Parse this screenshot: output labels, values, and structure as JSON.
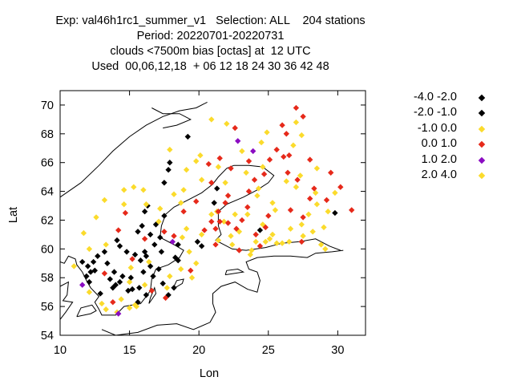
{
  "titles": [
    "Exp: val46h1rc1_summer_v1   Selection: ALL    204 stations",
    "Period: 20220701-20220731",
    "clouds <7500m bias [octas] at  12 UTC",
    "Used  00,06,12,18  + 06 12 18 24 30 36 42 48"
  ],
  "chart_data": {
    "type": "scatter",
    "title": "Exp: val46h1rc1_summer_v1   Selection: ALL    204 stations",
    "xlabel": "Lon",
    "ylabel": "Lat",
    "xlim": [
      10,
      32
    ],
    "ylim": [
      54,
      71
    ],
    "xticks": [
      "10",
      "15",
      "20",
      "25",
      "30"
    ],
    "yticks": [
      "54",
      "56",
      "58",
      "60",
      "62",
      "64",
      "66",
      "68",
      "70"
    ],
    "grid": false,
    "legend_position": "outside-right",
    "series": [
      {
        "name": "-4.0 -2.0",
        "color": "#000000",
        "points": [
          [
            19.2,
            67.8
          ],
          [
            17.9,
            66.0
          ],
          [
            17.8,
            65.5
          ],
          [
            16.3,
            63.0
          ],
          [
            17.5,
            62.3
          ],
          [
            16.1,
            62.6
          ],
          [
            15.9,
            61.6
          ],
          [
            15.6,
            61.2
          ],
          [
            16.5,
            61.0
          ],
          [
            17.2,
            60.8
          ],
          [
            16.8,
            60.3
          ],
          [
            16.1,
            59.8
          ],
          [
            15.4,
            59.6
          ],
          [
            15.8,
            59.2
          ],
          [
            16.5,
            58.8
          ],
          [
            17.1,
            58.6
          ],
          [
            16.0,
            58.4
          ],
          [
            15.1,
            58.0
          ],
          [
            14.3,
            57.7
          ],
          [
            14.9,
            57.1
          ],
          [
            15.7,
            57.3
          ],
          [
            16.2,
            56.8
          ],
          [
            17.4,
            57.6
          ],
          [
            18.2,
            57.3
          ],
          [
            13.2,
            59.8
          ],
          [
            12.7,
            59.5
          ],
          [
            12.4,
            59.1
          ],
          [
            11.6,
            59.1
          ],
          [
            12.5,
            58.5
          ],
          [
            13.9,
            58.4
          ],
          [
            13.6,
            57.9
          ],
          [
            12.1,
            57.7
          ],
          [
            12.9,
            56.9
          ],
          [
            11.9,
            58.1
          ],
          [
            17.8,
            56.8
          ],
          [
            20.2,
            60.2
          ],
          [
            19.9,
            60.5
          ],
          [
            18.3,
            59.4
          ],
          [
            21.1,
            63.2
          ],
          [
            24.4,
            61.3
          ],
          [
            29.8,
            62.5
          ],
          [
            21.3,
            64.2
          ],
          [
            14.0,
            57.5
          ],
          [
            16.7,
            58.1
          ],
          [
            18.5,
            60.3
          ]
        ]
      },
      {
        "name": "-2.0 -1.0",
        "color": "#000000",
        "points": [
          [
            17.5,
            64.6
          ],
          [
            16.9,
            61.7
          ],
          [
            14.3,
            60.2
          ],
          [
            14.8,
            59.8
          ],
          [
            13.4,
            59.0
          ],
          [
            12.2,
            58.4
          ],
          [
            14.5,
            58.1
          ],
          [
            15.2,
            57.2
          ],
          [
            17.3,
            59.8
          ],
          [
            16.2,
            59.5
          ],
          [
            18.5,
            59.2
          ],
          [
            15.6,
            56.3
          ],
          [
            13.8,
            57.3
          ],
          [
            12.0,
            58.8
          ],
          [
            14.1,
            60.6
          ]
        ]
      },
      {
        "name": "-1.0 0.0",
        "color": "#fbdb2c",
        "points": [
          [
            20.9,
            69.0
          ],
          [
            22.0,
            68.7
          ],
          [
            24.9,
            68.1
          ],
          [
            24.5,
            67.4
          ],
          [
            23.1,
            66.8
          ],
          [
            21.4,
            65.7
          ],
          [
            20.1,
            66.5
          ],
          [
            19.8,
            66.1
          ],
          [
            17.9,
            66.9
          ],
          [
            19.1,
            65.5
          ],
          [
            20.2,
            64.8
          ],
          [
            18.9,
            64.1
          ],
          [
            21.9,
            64.6
          ],
          [
            23.4,
            65.3
          ],
          [
            25.3,
            63.2
          ],
          [
            25.5,
            62.7
          ],
          [
            24.2,
            63.7
          ],
          [
            23.5,
            62.4
          ],
          [
            24.6,
            61.7
          ],
          [
            25.3,
            61.0
          ],
          [
            26.0,
            60.4
          ],
          [
            25.1,
            60.7
          ],
          [
            24.1,
            60.5
          ],
          [
            23.8,
            59.9
          ],
          [
            25.6,
            60.4
          ],
          [
            26.5,
            60.5
          ],
          [
            27.5,
            60.9
          ],
          [
            28.2,
            61.2
          ],
          [
            29.0,
            61.5
          ],
          [
            27.9,
            62.4
          ],
          [
            28.5,
            63.1
          ],
          [
            29.8,
            63.9
          ],
          [
            28.4,
            63.9
          ],
          [
            27.0,
            64.3
          ],
          [
            29.3,
            62.6
          ],
          [
            28.8,
            60.3
          ],
          [
            27.4,
            61.7
          ],
          [
            26.6,
            61.4
          ],
          [
            22.3,
            60.9
          ],
          [
            21.4,
            60.6
          ],
          [
            20.2,
            61.0
          ],
          [
            19.1,
            61.4
          ],
          [
            17.1,
            61.9
          ],
          [
            16.2,
            63.1
          ],
          [
            15.3,
            64.3
          ],
          [
            14.6,
            64.1
          ],
          [
            14.6,
            63.1
          ],
          [
            13.2,
            63.4
          ],
          [
            12.6,
            62.2
          ],
          [
            11.7,
            61.1
          ],
          [
            13.3,
            60.3
          ],
          [
            12.1,
            60.0
          ],
          [
            11.0,
            58.8
          ],
          [
            12.1,
            57.0
          ],
          [
            13.0,
            56.2
          ],
          [
            13.3,
            55.8
          ],
          [
            14.1,
            55.6
          ],
          [
            15.0,
            55.9
          ],
          [
            14.4,
            56.5
          ],
          [
            15.5,
            56.0
          ],
          [
            16.1,
            57.5
          ],
          [
            15.1,
            58.7
          ],
          [
            16.4,
            59.1
          ],
          [
            17.9,
            58.1
          ],
          [
            18.7,
            58.6
          ],
          [
            19.3,
            59.8
          ],
          [
            19.5,
            58.0
          ],
          [
            17.7,
            57.3
          ],
          [
            17.2,
            62.8
          ],
          [
            16.0,
            64.1
          ],
          [
            18.2,
            63.8
          ],
          [
            18.7,
            63.2
          ],
          [
            22.4,
            60.3
          ],
          [
            22.6,
            62.4
          ],
          [
            21.3,
            62.6
          ],
          [
            21.8,
            61.9
          ],
          [
            22.9,
            61.2
          ],
          [
            26.3,
            64.7
          ],
          [
            27.3,
            65.1
          ],
          [
            28.5,
            65.6
          ],
          [
            26.8,
            67.2
          ],
          [
            27.0,
            68.8
          ],
          [
            27.4,
            67.9
          ],
          [
            18.8,
            60.8
          ],
          [
            24.6,
            65.7
          ],
          [
            19.8,
            59.0
          ],
          [
            15.0,
            57.7
          ],
          [
            23.7,
            59.6
          ],
          [
            29.1,
            60.0
          ],
          [
            24.3,
            64.2
          ]
        ]
      },
      {
        "name": "0.0 1.0",
        "color": "#e6291a",
        "points": [
          [
            27.0,
            69.8
          ],
          [
            27.5,
            69.2
          ],
          [
            22.6,
            68.4
          ],
          [
            26.3,
            68.0
          ],
          [
            26.1,
            66.4
          ],
          [
            26.5,
            66.5
          ],
          [
            28.0,
            66.2
          ],
          [
            29.5,
            65.3
          ],
          [
            25.1,
            66.2
          ],
          [
            24.7,
            65.2
          ],
          [
            24.0,
            64.8
          ],
          [
            23.6,
            64.0
          ],
          [
            22.1,
            63.7
          ],
          [
            21.9,
            63.2
          ],
          [
            21.4,
            62.6
          ],
          [
            21.5,
            61.9
          ],
          [
            21.2,
            61.4
          ],
          [
            20.4,
            61.3
          ],
          [
            22.1,
            61.8
          ],
          [
            22.7,
            61.4
          ],
          [
            24.1,
            61.0
          ],
          [
            24.8,
            61.5
          ],
          [
            23.5,
            62.9
          ],
          [
            25.0,
            62.3
          ],
          [
            26.6,
            62.7
          ],
          [
            27.5,
            62.2
          ],
          [
            28.0,
            63.5
          ],
          [
            28.3,
            64.2
          ],
          [
            29.2,
            63.4
          ],
          [
            30.2,
            64.3
          ],
          [
            31.0,
            62.7
          ],
          [
            27.4,
            60.5
          ],
          [
            24.4,
            60.2
          ],
          [
            22.9,
            59.9
          ],
          [
            21.2,
            60.3
          ],
          [
            23.1,
            62.0
          ],
          [
            20.7,
            65.9
          ],
          [
            21.5,
            66.3
          ],
          [
            22.3,
            65.6
          ],
          [
            20.9,
            64.6
          ],
          [
            23.6,
            66.1
          ],
          [
            27.1,
            64.8
          ],
          [
            26.4,
            65.3
          ],
          [
            25.6,
            66.9
          ],
          [
            26.0,
            68.6
          ],
          [
            14.7,
            62.5
          ],
          [
            14.2,
            61.3
          ],
          [
            16.1,
            60.7
          ],
          [
            17.5,
            61.2
          ],
          [
            18.9,
            62.6
          ],
          [
            19.8,
            63.3
          ],
          [
            15.2,
            59.3
          ],
          [
            16.6,
            57.1
          ],
          [
            17.6,
            56.6
          ],
          [
            13.8,
            56.3
          ],
          [
            13.2,
            58.3
          ],
          [
            18.2,
            60.9
          ],
          [
            19.4,
            58.5
          ],
          [
            20.9,
            61.9
          ]
        ]
      },
      {
        "name": "1.0 2.0",
        "color": "#8b0cc2",
        "points": [
          [
            22.8,
            67.5
          ],
          [
            23.9,
            66.8
          ],
          [
            18.1,
            60.5
          ],
          [
            11.6,
            57.5
          ],
          [
            14.2,
            55.5
          ]
        ]
      },
      {
        "name": "2.0 4.0",
        "color": "#fbdb2c",
        "points": [
          [
            20.9,
            62.4
          ],
          [
            24.8,
            60.5
          ],
          [
            15.4,
            56.1
          ]
        ]
      }
    ]
  }
}
